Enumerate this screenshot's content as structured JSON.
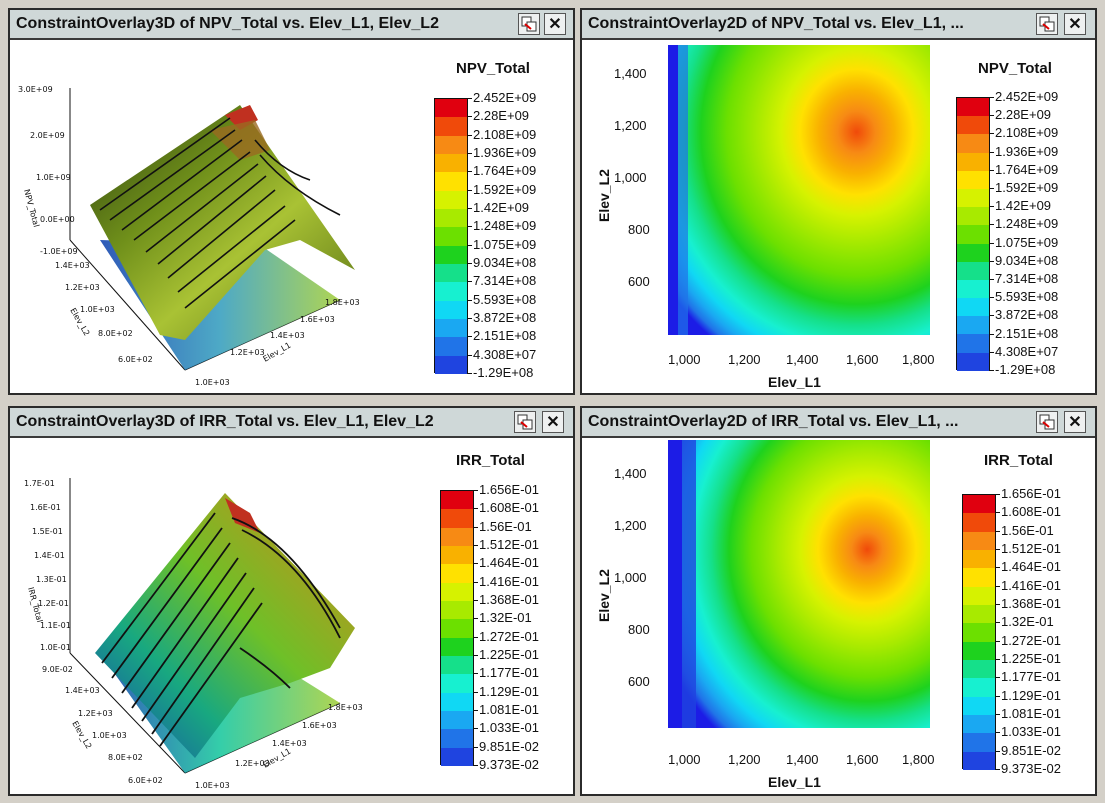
{
  "panes": [
    {
      "title": "ConstraintOverlay3D of NPV_Total vs. Elev_L1, Elev_L2",
      "legend_title": "NPV_Total",
      "levels": [
        "2.452E+09",
        "2.28E+09",
        "2.108E+09",
        "1.936E+09",
        "1.764E+09",
        "1.592E+09",
        "1.42E+09",
        "1.248E+09",
        "1.075E+09",
        "9.034E+08",
        "7.314E+08",
        "5.593E+08",
        "3.872E+08",
        "2.151E+08",
        "4.308E+07",
        "-1.29E+08"
      ],
      "axis_z_label": "NPV_Total",
      "axis_z_ticks": [
        "3.0E+09",
        "2.0E+09",
        "1.0E+09",
        "0.0E+00",
        "-1.0E+09"
      ],
      "axis_y_label": "Elev_L2",
      "axis_y_ticks": [
        "1.4E+03",
        "1.2E+03",
        "1.0E+03",
        "8.0E+02",
        "6.0E+02"
      ],
      "axis_x_label": "Elev_L1",
      "axis_x_ticks": [
        "1.0E+03",
        "1.2E+03",
        "1.4E+03",
        "1.6E+03",
        "1.8E+03"
      ]
    },
    {
      "title": "ConstraintOverlay2D of NPV_Total vs. Elev_L1, ...",
      "legend_title": "NPV_Total",
      "levels": [
        "2.452E+09",
        "2.28E+09",
        "2.108E+09",
        "1.936E+09",
        "1.764E+09",
        "1.592E+09",
        "1.42E+09",
        "1.248E+09",
        "1.075E+09",
        "9.034E+08",
        "7.314E+08",
        "5.593E+08",
        "3.872E+08",
        "2.151E+08",
        "4.308E+07",
        "-1.29E+08"
      ],
      "x_label": "Elev_L1",
      "y_label": "Elev_L2",
      "x_ticks": [
        "1,000",
        "1,200",
        "1,400",
        "1,600",
        "1,800"
      ],
      "y_ticks": [
        "1,400",
        "1,200",
        "1,000",
        "800",
        "600"
      ]
    },
    {
      "title": "ConstraintOverlay3D of IRR_Total vs. Elev_L1, Elev_L2",
      "legend_title": "IRR_Total",
      "levels": [
        "1.656E-01",
        "1.608E-01",
        "1.56E-01",
        "1.512E-01",
        "1.464E-01",
        "1.416E-01",
        "1.368E-01",
        "1.32E-01",
        "1.272E-01",
        "1.225E-01",
        "1.177E-01",
        "1.129E-01",
        "1.081E-01",
        "1.033E-01",
        "9.851E-02",
        "9.373E-02"
      ],
      "axis_z_label": "IRR_Total",
      "axis_z_ticks": [
        "1.7E-01",
        "1.6E-01",
        "1.5E-01",
        "1.4E-01",
        "1.3E-01",
        "1.2E-01",
        "1.1E-01",
        "1.0E-01",
        "9.0E-02"
      ],
      "axis_y_label": "Elev_L2",
      "axis_y_ticks": [
        "1.4E+03",
        "1.2E+03",
        "1.0E+03",
        "8.0E+02",
        "6.0E+02"
      ],
      "axis_x_label": "Elev_L1",
      "axis_x_ticks": [
        "1.0E+03",
        "1.2E+03",
        "1.4E+03",
        "1.6E+03",
        "1.8E+03"
      ]
    },
    {
      "title": "ConstraintOverlay2D of IRR_Total vs. Elev_L1, ...",
      "legend_title": "IRR_Total",
      "levels": [
        "1.656E-01",
        "1.608E-01",
        "1.56E-01",
        "1.512E-01",
        "1.464E-01",
        "1.416E-01",
        "1.368E-01",
        "1.32E-01",
        "1.272E-01",
        "1.225E-01",
        "1.177E-01",
        "1.129E-01",
        "1.081E-01",
        "1.033E-01",
        "9.851E-02",
        "9.373E-02"
      ],
      "x_label": "Elev_L1",
      "y_label": "Elev_L2",
      "x_ticks": [
        "1,000",
        "1,200",
        "1,400",
        "1,600",
        "1,800"
      ],
      "y_ticks": [
        "1,400",
        "1,200",
        "1,000",
        "800",
        "600"
      ]
    }
  ],
  "colors": {
    "palette": [
      "#e0000f",
      "#f04a0a",
      "#f78a14",
      "#f9b100",
      "#ffe100",
      "#d6f200",
      "#a8ea00",
      "#6ce000",
      "#1ed21e",
      "#15e08a",
      "#17f0d0",
      "#10d8f4",
      "#1aa8f2",
      "#2074e8",
      "#1f44e0",
      "#1c1ce6"
    ],
    "title_bar": "#cfd8d8"
  }
}
